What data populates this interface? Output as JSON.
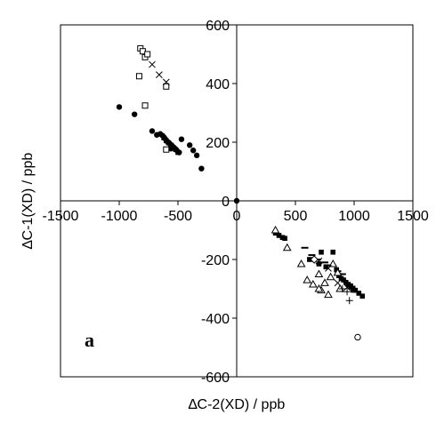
{
  "chart_data": {
    "type": "scatter",
    "title": "",
    "panel_label": "a",
    "xlabel": "∆C-2(XD) / ppb",
    "ylabel": "∆C-1(XD) / ppb",
    "xlim": [
      -1500,
      1500
    ],
    "ylim": [
      -600,
      600
    ],
    "x_ticks": [
      -1500,
      -1000,
      -500,
      0,
      500,
      1000,
      1500
    ],
    "y_ticks": [
      600,
      400,
      200,
      0,
      -200,
      -400,
      -600
    ],
    "x_tick_labels": [
      "-1500",
      "-1000",
      "-500",
      "0",
      "500",
      "1000",
      "1500"
    ],
    "y_tick_labels": [
      "600",
      "400",
      "200",
      "0",
      "-200",
      "-400",
      "-600"
    ],
    "grid": false,
    "legend": "none",
    "axes_style": "crosshair-through-origin",
    "series": [
      {
        "marker": "filled-circle",
        "x": [
          -1000,
          -870,
          -720,
          -650,
          -630,
          -610,
          -590,
          -570,
          -550,
          -530,
          -510,
          -490,
          -680,
          -560,
          -470,
          -400,
          -370,
          -340,
          -300,
          0
        ],
        "y": [
          320,
          295,
          238,
          228,
          222,
          212,
          202,
          195,
          188,
          180,
          172,
          165,
          225,
          178,
          210,
          190,
          172,
          155,
          110,
          0
        ]
      },
      {
        "marker": "filled-square",
        "x": [
          -620,
          -600,
          -580,
          -560,
          -540,
          -520,
          -500
        ],
        "y": [
          215,
          205,
          198,
          190,
          182,
          175,
          165
        ]
      },
      {
        "marker": "open-square",
        "x": [
          -820,
          -800,
          -780,
          -760,
          -600,
          -830,
          -780,
          -600
        ],
        "y": [
          520,
          510,
          490,
          500,
          390,
          425,
          325,
          175
        ]
      },
      {
        "marker": "x",
        "x": [
          -720,
          -660,
          -600
        ],
        "y": [
          465,
          430,
          405
        ]
      },
      {
        "marker": "filled-square",
        "x": [
          330,
          360,
          390,
          410,
          820,
          850,
          870,
          890,
          910,
          930,
          950,
          970,
          990,
          1010,
          1040,
          1070,
          620,
          700,
          760,
          720
        ],
        "y": [
          -110,
          -118,
          -125,
          -128,
          -175,
          -235,
          -255,
          -265,
          -270,
          -278,
          -285,
          -290,
          -298,
          -305,
          -315,
          -325,
          -200,
          -215,
          -225,
          -175
        ]
      },
      {
        "marker": "dash",
        "x": [
          580,
          640,
          690,
          750,
          800,
          860,
          900,
          960,
          1000
        ],
        "y": [
          -160,
          -185,
          -200,
          -210,
          -220,
          -240,
          -250,
          -290,
          -310
        ]
      },
      {
        "marker": "open-triangle",
        "x": [
          330,
          430,
          550,
          600,
          650,
          700,
          720,
          750,
          780,
          800,
          820,
          860,
          880,
          700
        ],
        "y": [
          -100,
          -160,
          -215,
          -270,
          -285,
          -250,
          -305,
          -280,
          -320,
          -260,
          -215,
          -245,
          -300,
          -300
        ]
      },
      {
        "marker": "x",
        "x": [
          700,
          780,
          860,
          940
        ],
        "y": [
          -205,
          -230,
          -280,
          -295
        ]
      },
      {
        "marker": "plus",
        "x": [
          900,
          940,
          960,
          980
        ],
        "y": [
          -300,
          -310,
          -340,
          -300
        ]
      },
      {
        "marker": "open-diamond",
        "x": [
          660
        ],
        "y": [
          -200
        ]
      },
      {
        "marker": "open-circle",
        "x": [
          1030
        ],
        "y": [
          -465
        ]
      }
    ]
  }
}
